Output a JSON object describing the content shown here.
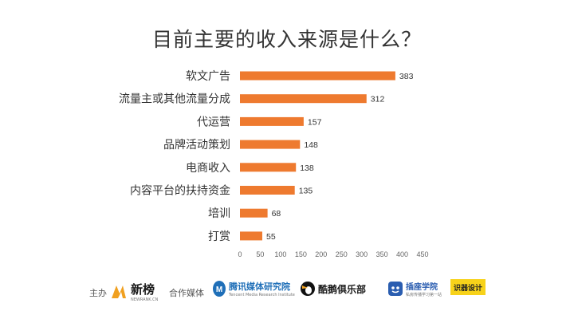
{
  "title": "目前主要的收入来源是什么？",
  "colors": {
    "bar": "#ee7a2f",
    "text": "#333333",
    "tick": "#666666"
  },
  "chart_data": {
    "type": "bar",
    "orientation": "horizontal",
    "title": "目前主要的收入来源是什么？",
    "categories": [
      "软文广告",
      "流量主或其他流量分成",
      "代运营",
      "品牌活动策划",
      "电商收入",
      "内容平台的扶持资金",
      "培训",
      "打赏"
    ],
    "values": [
      383,
      312,
      157,
      148,
      138,
      135,
      68,
      55
    ],
    "xlim": [
      0,
      450
    ],
    "xticks": [
      0,
      50,
      100,
      150,
      200,
      250,
      300,
      350,
      400,
      450
    ],
    "grid": false,
    "legend": "none",
    "data_labels": true
  },
  "footer": {
    "host_label": "主办",
    "host_logo": {
      "name": "新榜",
      "sub": "NEWRANK.CN",
      "icon": "newrank-logo-icon"
    },
    "partner_label": "合作媒体",
    "partners": [
      {
        "name": "腾讯媒体研究院",
        "sub": "Tencent Media Research Institute",
        "icon": "tencent-logo-icon"
      },
      {
        "name": "酷鹅俱乐部",
        "icon": "penguin-logo-icon"
      },
      {
        "name": "插座学院",
        "sub": "私房传播学习第一站",
        "icon": "socket-logo-icon"
      },
      {
        "name": "识器设计",
        "icon": "brand-badge-icon"
      }
    ]
  }
}
